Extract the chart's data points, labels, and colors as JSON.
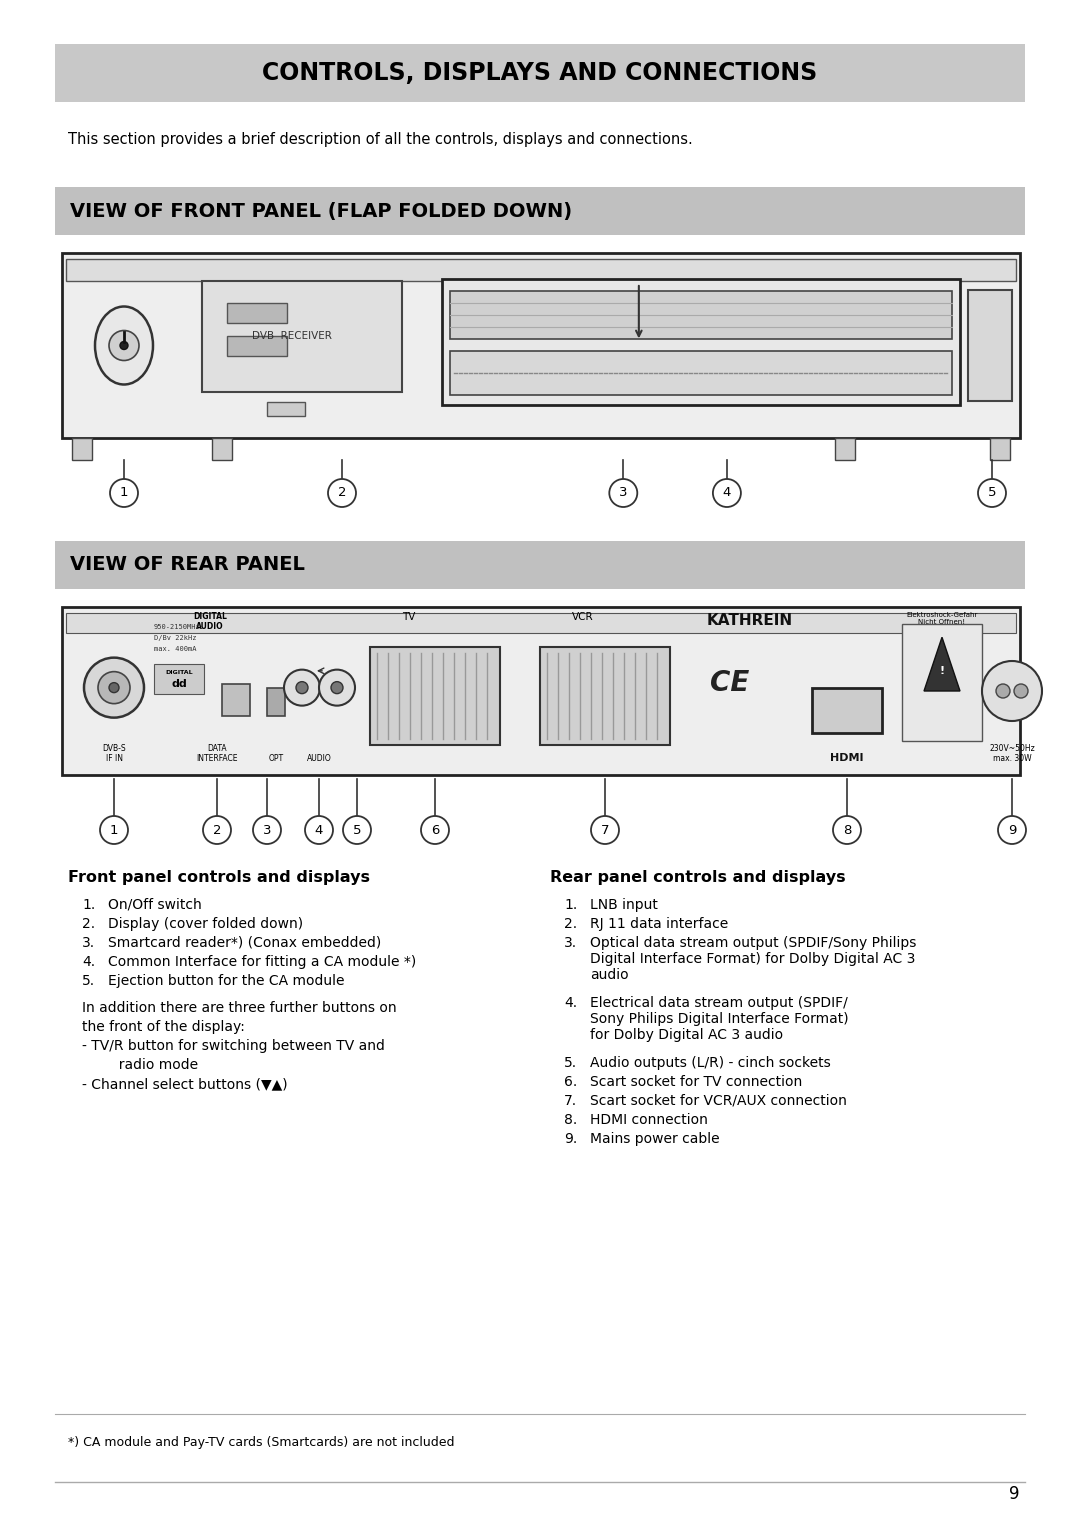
{
  "page_bg": "#ffffff",
  "title_bg": "#c8c8c8",
  "section_bg": "#c0c0c0",
  "title_text": "CONTROLS, DISPLAYS AND CONNECTIONS",
  "intro_text": "This section provides a brief description of all the controls, displays and connections.",
  "section1_title": "VIEW OF FRONT PANEL (FLAP FOLDED DOWN)",
  "section2_title": "VIEW OF REAR PANEL",
  "front_labels_title": "Front panel controls and displays",
  "rear_labels_title": "Rear panel controls and displays",
  "front_items": [
    "On/Off switch",
    "Display (cover folded down)",
    "Smartcard reader*) (Conax embedded)",
    "Common Interface for fitting a CA module *)",
    "Ejection button for the CA module"
  ],
  "rear_items": [
    "LNB input",
    "RJ 11 data interface",
    "Optical data stream output (SPDIF/Sony Philips\nDigital Interface Format) for Dolby Digital AC 3\naudio",
    "Electrical data stream output (SPDIF/\nSony Philips Digital Interface Format)\nfor Dolby Digital AC 3 audio",
    "Audio outputs (L/R) - cinch sockets",
    "Scart socket for TV connection",
    "Scart socket for VCR/AUX connection",
    "HDMI connection",
    "Mains power cable"
  ],
  "footnote": "*) CA module and Pay-TV cards (Smartcards) are not included",
  "page_number": "9"
}
